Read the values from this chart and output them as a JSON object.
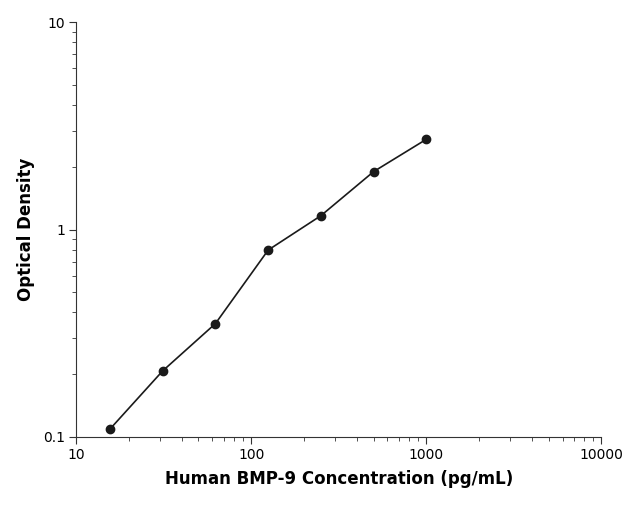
{
  "x": [
    15.6,
    31.2,
    62.5,
    125,
    250,
    500,
    1000
  ],
  "y": [
    0.109,
    0.208,
    0.352,
    0.796,
    1.166,
    1.902,
    2.723
  ],
  "xlabel": "Human BMP-9 Concentration (pg/mL)",
  "ylabel": "Optical Density",
  "xlim": [
    10,
    10000
  ],
  "ylim": [
    0.1,
    10
  ],
  "line_color": "#1a1a1a",
  "marker_color": "#1a1a1a",
  "marker_size": 6,
  "line_width": 1.2,
  "background_color": "#ffffff",
  "xlabel_fontsize": 12,
  "ylabel_fontsize": 12,
  "tick_fontsize": 10,
  "ytick_labels": [
    "0.1",
    "1",
    "10"
  ],
  "ytick_values": [
    0.1,
    1,
    10
  ],
  "xtick_labels": [
    "10",
    "100",
    "1000",
    "10000"
  ],
  "xtick_values": [
    10,
    100,
    1000,
    10000
  ]
}
